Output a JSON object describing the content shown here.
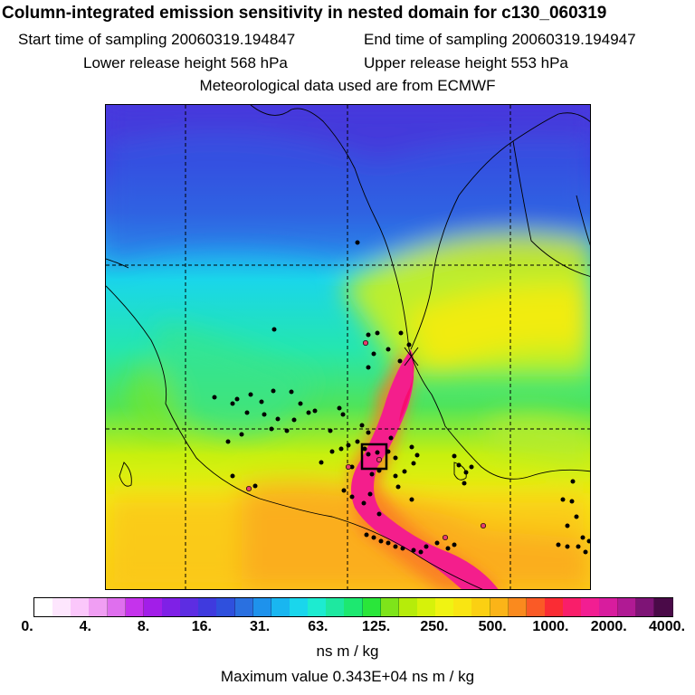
{
  "header": {
    "title": "Column-integrated emission sensitivity in nested domain for c130_060319",
    "start_time": "Start time of sampling 20060319.194847",
    "end_time": "End time of sampling 20060319.194947",
    "lower_height": "Lower release height  568 hPa",
    "upper_height": "Upper release height  553 hPa",
    "met_data": "Meteorological data used are from ECMWF"
  },
  "colorbar": {
    "colors": [
      "#ffffff",
      "#fde6fd",
      "#fbc7fb",
      "#f09ef3",
      "#df6fee",
      "#c533ec",
      "#a21ee8",
      "#7f20e6",
      "#5d2de2",
      "#3f3ade",
      "#2f50dd",
      "#2a70e0",
      "#1e92ec",
      "#19b6f0",
      "#1ad6ec",
      "#1debd0",
      "#1ee8a0",
      "#1de870",
      "#2ae63a",
      "#7ee41a",
      "#b6ec0a",
      "#d6f20a",
      "#f0f312",
      "#f9e512",
      "#fbd012",
      "#fbb418",
      "#fa8a1e",
      "#fa5a26",
      "#fa2c34",
      "#f91e6a",
      "#f21e92",
      "#d81c9e",
      "#b01a94",
      "#7e1476",
      "#4a0a48"
    ],
    "tick_labels": [
      "0.",
      "4.",
      "8.",
      "16.",
      "31.",
      "63.",
      "125.",
      "250.",
      "500.",
      "1000.",
      "2000.",
      "4000."
    ],
    "unit_label": "ns m / kg"
  },
  "footer": {
    "max_value": "Maximum value  0.343E+04 ns m / kg"
  }
}
